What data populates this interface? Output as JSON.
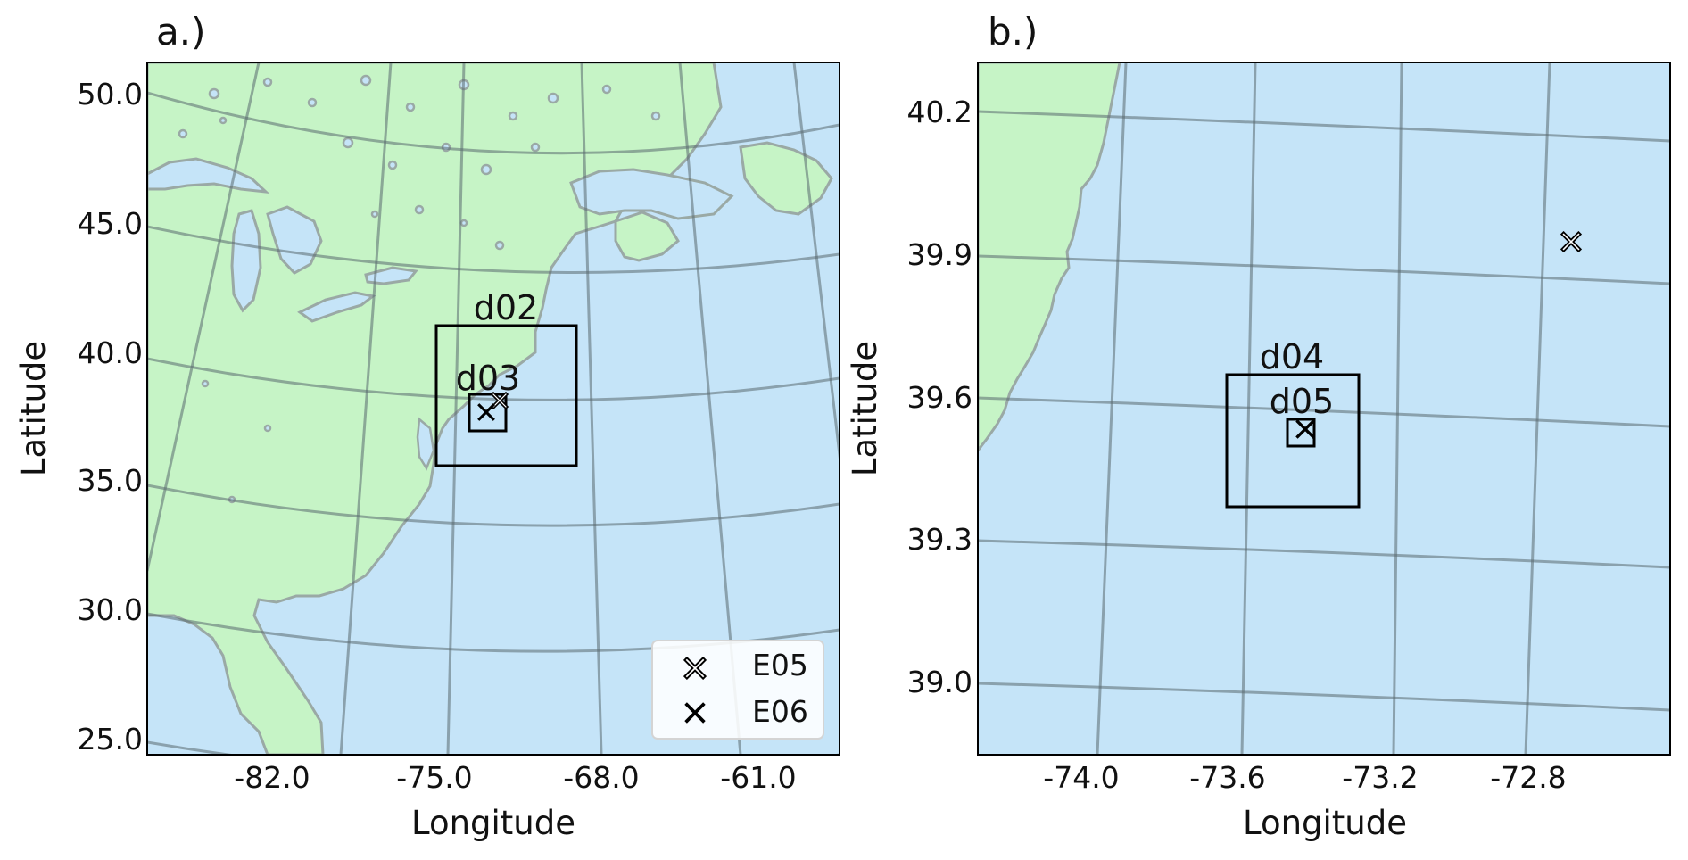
{
  "colors": {
    "ocean": "#c5e4f8",
    "land": "#c6f4c6",
    "coast": "#9aa9a5",
    "grid": "#5a6a70",
    "frame": "#000000"
  },
  "panel_a": {
    "title": "a.)",
    "xlabel": "Longitude",
    "ylabel": "Latitude",
    "yticks": [
      "50.0",
      "45.0",
      "40.0",
      "35.0",
      "30.0",
      "25.0"
    ],
    "xticks": [
      "-82.0",
      "-75.0",
      "-68.0",
      "-61.0"
    ],
    "domains": [
      "d02",
      "d03"
    ],
    "legend": [
      {
        "label": "E05",
        "marker": "open-x"
      },
      {
        "label": "E06",
        "marker": "filled-x"
      }
    ]
  },
  "panel_b": {
    "title": "b.)",
    "xlabel": "Longitude",
    "ylabel": "Latitude",
    "yticks": [
      "40.2",
      "39.9",
      "39.6",
      "39.3",
      "39.0"
    ],
    "xticks": [
      "-74.0",
      "-73.6",
      "-73.2",
      "-72.8"
    ],
    "domains": [
      "d04",
      "d05"
    ]
  }
}
